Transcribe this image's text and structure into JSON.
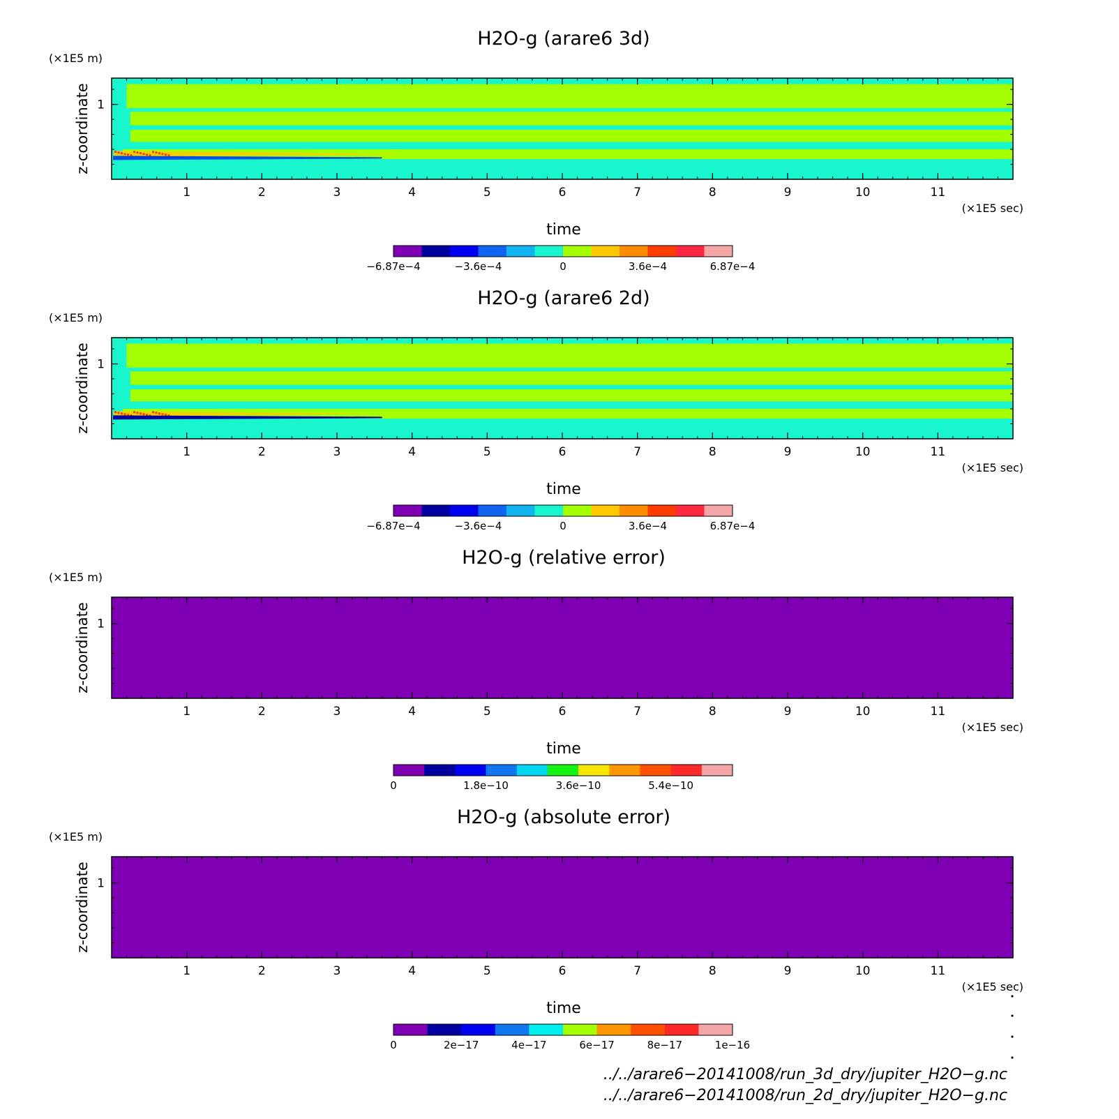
{
  "chart_data": [
    {
      "type": "heatmap",
      "title": "H2O-g (arare6 3d)",
      "xlabel": "time",
      "ylabel": "z-coordinate",
      "x_scale_label": "(×1E5 sec)",
      "y_scale_label": "(×1E5 m)",
      "xlim": [
        0,
        12
      ],
      "ylim": [
        0,
        1.35
      ],
      "x_ticks": [
        "1",
        "2",
        "3",
        "4",
        "5",
        "6",
        "7",
        "8",
        "9",
        "10",
        "11"
      ],
      "y_ticks": [
        "1"
      ],
      "background": "#19f5cc",
      "bands": [
        {
          "y0": 0.27,
          "y1": 0.4,
          "start": 0.15,
          "color": "#a4ff00"
        },
        {
          "y0": 0.5,
          "y1": 0.66,
          "start": 0.25,
          "color": "#a4ff00"
        },
        {
          "y0": 0.72,
          "y1": 0.9,
          "start": 0.25,
          "color": "#a4ff00"
        },
        {
          "y0": 0.95,
          "y1": 1.27,
          "start": 0.2,
          "color": "#a4ff00"
        }
      ],
      "bright_layer": {
        "y0": 0.3,
        "y1": 0.38,
        "color": "#ffc800",
        "end": 3.8
      },
      "dark_line": {
        "y": 0.285,
        "color": "#0050e6",
        "end": 3.6
      },
      "colorbar": {
        "colors": [
          "#7f00b4",
          "#0000a0",
          "#0000f0",
          "#0f64f0",
          "#0fb4f0",
          "#19f5cc",
          "#a4ff00",
          "#ffc800",
          "#ff8c00",
          "#ff3c00",
          "#ff2840",
          "#f4a6a6"
        ],
        "ticks": [
          {
            "label": "−6.87e−4",
            "index": 0
          },
          {
            "label": "−3.6e−4",
            "index": 3
          },
          {
            "label": "0",
            "index": 6
          },
          {
            "label": "3.6e−4",
            "index": 9
          },
          {
            "label": "6.87e−4",
            "index": 12
          }
        ]
      }
    },
    {
      "type": "heatmap",
      "title": "H2O-g (arare6 2d)",
      "xlabel": "time",
      "ylabel": "z-coordinate",
      "x_scale_label": "(×1E5 sec)",
      "y_scale_label": "(×1E5 m)",
      "xlim": [
        0,
        12
      ],
      "ylim": [
        0,
        1.35
      ],
      "x_ticks": [
        "1",
        "2",
        "3",
        "4",
        "5",
        "6",
        "7",
        "8",
        "9",
        "10",
        "11"
      ],
      "y_ticks": [
        "1"
      ],
      "background": "#19f5cc",
      "bands": [
        {
          "y0": 0.27,
          "y1": 0.4,
          "start": 0.15,
          "color": "#a4ff00"
        },
        {
          "y0": 0.5,
          "y1": 0.66,
          "start": 0.25,
          "color": "#a4ff00"
        },
        {
          "y0": 0.72,
          "y1": 0.9,
          "start": 0.25,
          "color": "#a4ff00"
        },
        {
          "y0": 0.95,
          "y1": 1.27,
          "start": 0.2,
          "color": "#a4ff00"
        }
      ],
      "bright_layer": {
        "y0": 0.3,
        "y1": 0.37,
        "color": "#ffc800",
        "end": 3.4
      },
      "dark_line": {
        "y": 0.285,
        "color": "#0000a0",
        "end": 3.6
      },
      "colorbar": {
        "colors": [
          "#7f00b4",
          "#0000a0",
          "#0000f0",
          "#0f64f0",
          "#0fb4f0",
          "#19f5cc",
          "#a4ff00",
          "#ffc800",
          "#ff8c00",
          "#ff3c00",
          "#ff2840",
          "#f4a6a6"
        ],
        "ticks": [
          {
            "label": "−6.87e−4",
            "index": 0
          },
          {
            "label": "−3.6e−4",
            "index": 3
          },
          {
            "label": "0",
            "index": 6
          },
          {
            "label": "3.6e−4",
            "index": 9
          },
          {
            "label": "6.87e−4",
            "index": 12
          }
        ]
      }
    },
    {
      "type": "heatmap",
      "title": "H2O-g (relative error)",
      "xlabel": "time",
      "ylabel": "z-coordinate",
      "x_scale_label": "(×1E5 sec)",
      "y_scale_label": "(×1E5 m)",
      "xlim": [
        0,
        12
      ],
      "ylim": [
        0,
        1.35
      ],
      "x_ticks": [
        "1",
        "2",
        "3",
        "4",
        "5",
        "6",
        "7",
        "8",
        "9",
        "10",
        "11"
      ],
      "y_ticks": [
        "1"
      ],
      "background": "#7f00b4",
      "bands": [],
      "colorbar": {
        "colors": [
          "#7f00b4",
          "#0000a0",
          "#0000f0",
          "#0f78f0",
          "#00d7f5",
          "#14f514",
          "#f5e600",
          "#ff9600",
          "#ff5000",
          "#ff2828",
          "#f4a6a6"
        ],
        "ticks": [
          {
            "label": "0",
            "index": 0
          },
          {
            "label": "1.8e−10",
            "index": 3
          },
          {
            "label": "3.6e−10",
            "index": 6
          },
          {
            "label": "5.4e−10",
            "index": 9
          }
        ]
      }
    },
    {
      "type": "heatmap",
      "title": "H2O-g (absolute error)",
      "xlabel": "time",
      "ylabel": "z-coordinate",
      "x_scale_label": "(×1E5 sec)",
      "y_scale_label": "(×1E5 m)",
      "xlim": [
        0,
        12
      ],
      "ylim": [
        0,
        1.35
      ],
      "x_ticks": [
        "1",
        "2",
        "3",
        "4",
        "5",
        "6",
        "7",
        "8",
        "9",
        "10",
        "11"
      ],
      "y_ticks": [
        "1"
      ],
      "background": "#7f00b4",
      "bands": [],
      "colorbar": {
        "colors": [
          "#7f00b4",
          "#0000a0",
          "#0000f0",
          "#0f78f0",
          "#00f0f0",
          "#a4ff00",
          "#ff9600",
          "#ff5000",
          "#ff2828",
          "#f4a6a6"
        ],
        "ticks": [
          {
            "label": "0",
            "index": 0
          },
          {
            "label": "2e−17",
            "index": 2
          },
          {
            "label": "4e−17",
            "index": 4
          },
          {
            "label": "6e−17",
            "index": 6
          },
          {
            "label": "8e−17",
            "index": 8
          },
          {
            "label": "1e−16",
            "index": 10
          }
        ]
      }
    }
  ],
  "footer": {
    "line1": "../../arare6−20141008/run_3d_dry/jupiter_H2O−g.nc",
    "line2": "../../arare6−20141008/run_2d_dry/jupiter_H2O−g.nc"
  }
}
